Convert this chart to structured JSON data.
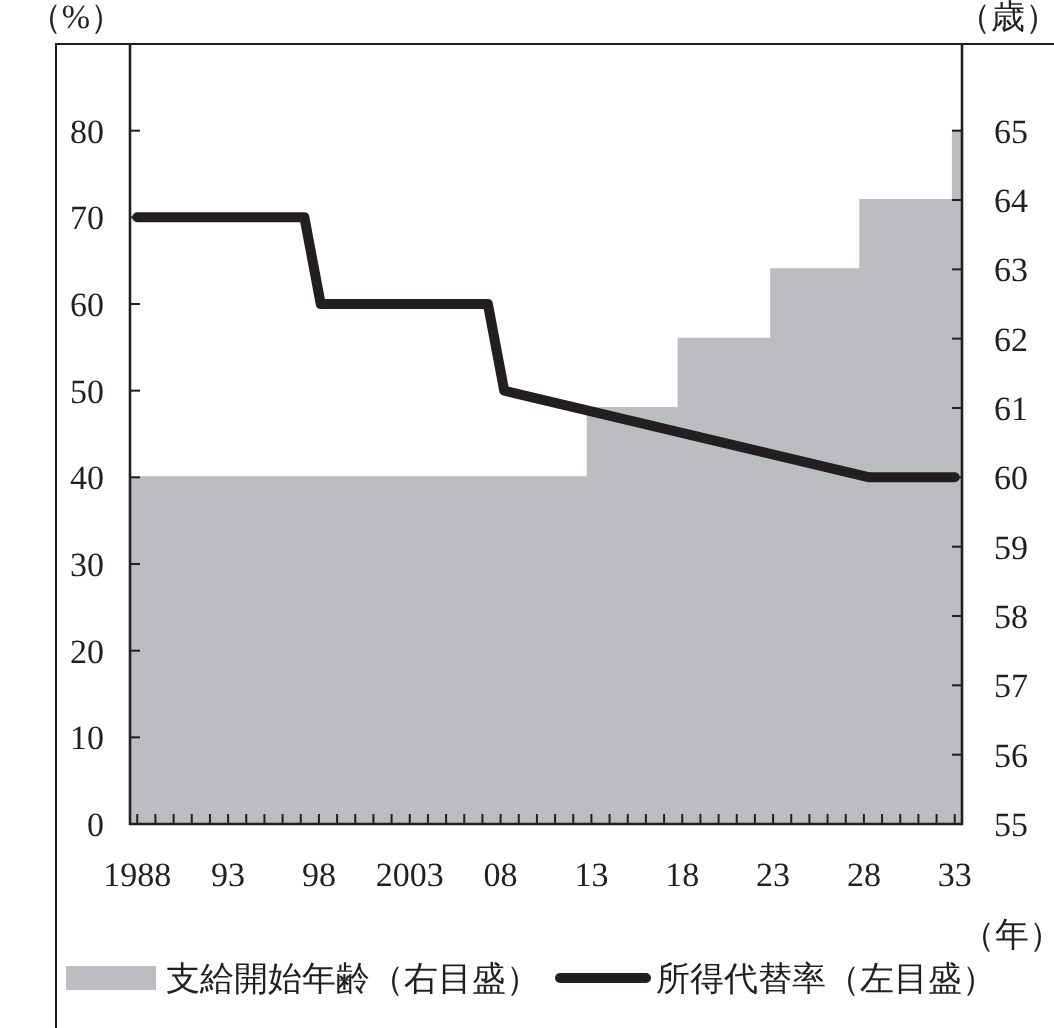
{
  "chart_data": {
    "type": "line",
    "xlabel": "（年）",
    "ylabel": "（%）",
    "y2label": "（歳）",
    "xlim": [
      1987.6,
      2033.4
    ],
    "xticks": [
      {
        "value": 1988,
        "label": "1988"
      },
      {
        "value": 1989,
        "label": null
      },
      {
        "value": 1990,
        "label": null
      },
      {
        "value": 1991,
        "label": null
      },
      {
        "value": 1992,
        "label": null
      },
      {
        "value": 1993,
        "label": "93"
      },
      {
        "value": 1994,
        "label": null
      },
      {
        "value": 1995,
        "label": null
      },
      {
        "value": 1996,
        "label": null
      },
      {
        "value": 1997,
        "label": null
      },
      {
        "value": 1998,
        "label": "98"
      },
      {
        "value": 1999,
        "label": null
      },
      {
        "value": 2000,
        "label": null
      },
      {
        "value": 2001,
        "label": null
      },
      {
        "value": 2002,
        "label": null
      },
      {
        "value": 2003,
        "label": "2003"
      },
      {
        "value": 2004,
        "label": null
      },
      {
        "value": 2005,
        "label": null
      },
      {
        "value": 2006,
        "label": null
      },
      {
        "value": 2007,
        "label": null
      },
      {
        "value": 2008,
        "label": "08"
      },
      {
        "value": 2009,
        "label": null
      },
      {
        "value": 2010,
        "label": null
      },
      {
        "value": 2011,
        "label": null
      },
      {
        "value": 2012,
        "label": null
      },
      {
        "value": 2013,
        "label": "13"
      },
      {
        "value": 2014,
        "label": null
      },
      {
        "value": 2015,
        "label": null
      },
      {
        "value": 2016,
        "label": null
      },
      {
        "value": 2017,
        "label": null
      },
      {
        "value": 2018,
        "label": "18"
      },
      {
        "value": 2019,
        "label": null
      },
      {
        "value": 2020,
        "label": null
      },
      {
        "value": 2021,
        "label": null
      },
      {
        "value": 2022,
        "label": null
      },
      {
        "value": 2023,
        "label": "23"
      },
      {
        "value": 2024,
        "label": null
      },
      {
        "value": 2025,
        "label": null
      },
      {
        "value": 2026,
        "label": null
      },
      {
        "value": 2027,
        "label": null
      },
      {
        "value": 2028,
        "label": "28"
      },
      {
        "value": 2029,
        "label": null
      },
      {
        "value": 2030,
        "label": null
      },
      {
        "value": 2031,
        "label": null
      },
      {
        "value": 2032,
        "label": null
      },
      {
        "value": 2033,
        "label": "33"
      }
    ],
    "ylim": [
      0,
      90
    ],
    "yticks": [
      0,
      10,
      20,
      30,
      40,
      50,
      60,
      70,
      80
    ],
    "y2lim": [
      55,
      66.25
    ],
    "y2ticks": [
      55,
      56,
      57,
      58,
      59,
      60,
      61,
      62,
      63,
      64,
      65
    ],
    "grid": false,
    "legend": "bottom",
    "series": [
      {
        "name": "支給開始年齢（右目盛）",
        "type": "area",
        "axis": "y2",
        "color": "#bcbdc1",
        "x": [
          1987.6,
          2012.8,
          2012.8,
          2017.8,
          2017.8,
          2022.9,
          2022.9,
          2027.8,
          2027.8,
          2032.9,
          2032.9,
          2033.4
        ],
        "values": [
          60,
          60,
          61,
          61,
          62,
          62,
          63,
          63,
          64,
          64,
          65,
          65
        ]
      },
      {
        "name": "所得代替率（左目盛）",
        "color": "#231f20",
        "x": [
          1988,
          1997.2,
          1998.1,
          2007.3,
          2008.2,
          2028.3,
          2033
        ],
        "values": [
          70,
          70,
          60,
          60,
          50,
          40,
          40
        ]
      }
    ]
  }
}
